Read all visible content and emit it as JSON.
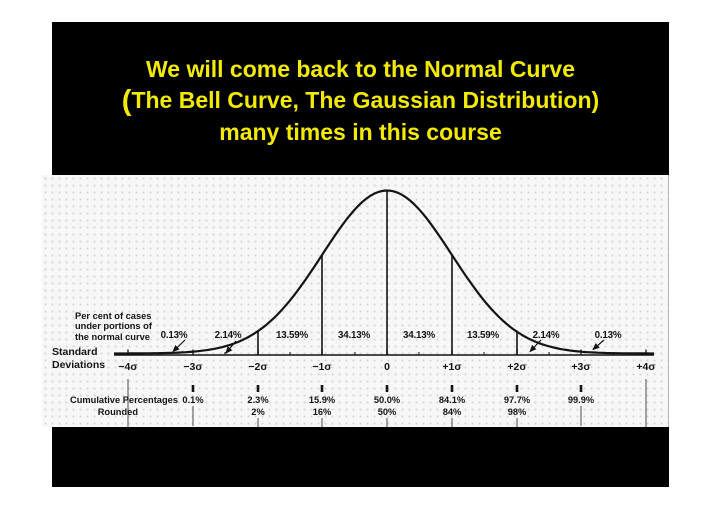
{
  "slide": {
    "background_color": "#000000",
    "title_color": "#f2ea00",
    "title": {
      "line1": "We will come back to the Normal Curve",
      "line2_paren": "(",
      "line2_rest": "The Bell Curve, The Gaussian Distribution)",
      "line3": "many times in this course"
    }
  },
  "figure": {
    "percent_caption": [
      "Per cent of cases",
      "under portions of",
      "the normal curve"
    ],
    "std_dev_label": [
      "Standard",
      "Deviations"
    ],
    "segment_percentages": [
      "0.13%",
      "2.14%",
      "13.59%",
      "34.13%",
      "34.13%",
      "13.59%",
      "2.14%",
      "0.13%"
    ],
    "axis_ticks": [
      "−4σ",
      "−3σ",
      "−2σ",
      "−1σ",
      "0",
      "+1σ",
      "+2σ",
      "+3σ",
      "+4σ"
    ],
    "cumulative_label": "Cumulative Percentages",
    "cumulative_values": [
      "0.1%",
      "2.3%",
      "15.9%",
      "50.0%",
      "84.1%",
      "97.7%",
      "99.9%"
    ],
    "rounded_label": "Rounded",
    "rounded_values": [
      "2%",
      "16%",
      "50%",
      "84%",
      "98%"
    ],
    "ink_color": "#141414",
    "paper_color": "#f7f7f8"
  },
  "chart_data": {
    "type": "area",
    "title": "We will come back to the Normal Curve (The Bell Curve, The Gaussian Distribution) many times in this course",
    "curve": "standard normal (Gaussian) distribution",
    "xlabel": "Standard Deviations",
    "x_ticks": [
      "−4σ",
      "−3σ",
      "−2σ",
      "−1σ",
      "0",
      "+1σ",
      "+2σ",
      "+3σ",
      "+4σ"
    ],
    "xlim_sigma": [
      -4,
      4
    ],
    "grid": false,
    "legend": false,
    "segments_percent_of_cases": [
      {
        "range": "−4σ to −3σ",
        "percent": 0.13
      },
      {
        "range": "−3σ to −2σ",
        "percent": 2.14
      },
      {
        "range": "−2σ to −1σ",
        "percent": 13.59
      },
      {
        "range": "−1σ to 0",
        "percent": 34.13
      },
      {
        "range": "0 to +1σ",
        "percent": 34.13
      },
      {
        "range": "+1σ to +2σ",
        "percent": 13.59
      },
      {
        "range": "+2σ to +3σ",
        "percent": 2.14
      },
      {
        "range": "+3σ to +4σ",
        "percent": 0.13
      }
    ],
    "cumulative_percentages": {
      "x": [
        "−3σ",
        "−2σ",
        "−1σ",
        "0",
        "+1σ",
        "+2σ",
        "+3σ"
      ],
      "values": [
        0.1,
        2.3,
        15.9,
        50.0,
        84.1,
        97.7,
        99.9
      ]
    },
    "rounded_percentages": {
      "x": [
        "−2σ",
        "−1σ",
        "0",
        "+1σ",
        "+2σ"
      ],
      "values": [
        2,
        16,
        50,
        84,
        98
      ]
    }
  }
}
